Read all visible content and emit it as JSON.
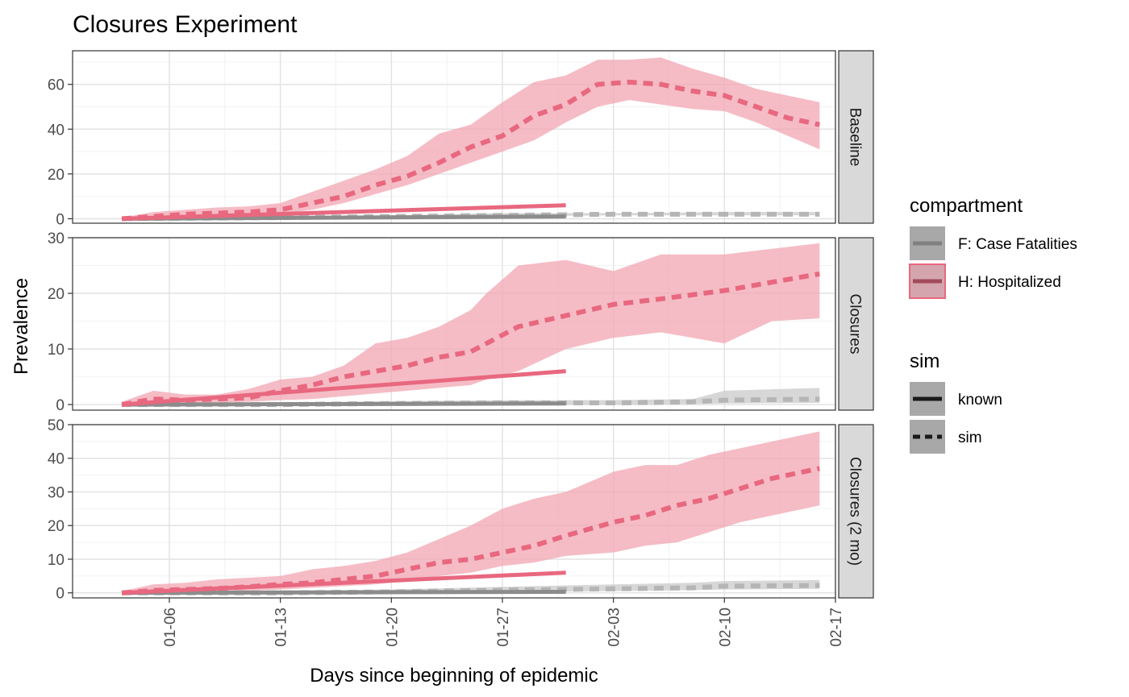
{
  "chart_data": {
    "type": "line",
    "title": "Closures Experiment",
    "xlabel": "Days since beginning of epidemic",
    "ylabel": "Prevalence",
    "x_ticks": [
      "01-06",
      "01-13",
      "01-20",
      "01-27",
      "02-03",
      "02-10",
      "02-17"
    ],
    "x_range": [
      "2020-01-01",
      "2020-02-17"
    ],
    "grid": true,
    "legend_position": "right",
    "legend": {
      "compartment_title": "compartment",
      "compartments": [
        {
          "label": "F: Case Fatalities",
          "color": "#8c8c8c",
          "band_color": "#c9c9c9"
        },
        {
          "label": "H: Hospitalized",
          "color": "#e8687f",
          "band_color": "#f2a6b3"
        }
      ],
      "sim_title": "sim",
      "sims": [
        {
          "label": "known",
          "style": "solid"
        },
        {
          "label": "sim",
          "style": "dashed"
        }
      ]
    },
    "panels": [
      {
        "strip": "Baseline",
        "ylim": [
          -2,
          75
        ],
        "y_ticks": [
          0,
          20,
          40,
          60
        ],
        "known_H": {
          "x": [
            "2020-01-03",
            "2020-01-31"
          ],
          "y": [
            0,
            6
          ]
        },
        "known_F": {
          "x": [
            "2020-01-03",
            "2020-01-31"
          ],
          "y": [
            0,
            1
          ]
        },
        "sim_H": {
          "x": [
            "2020-01-03",
            "2020-01-05",
            "2020-01-07",
            "2020-01-09",
            "2020-01-11",
            "2020-01-13",
            "2020-01-15",
            "2020-01-17",
            "2020-01-19",
            "2020-01-21",
            "2020-01-23",
            "2020-01-25",
            "2020-01-27",
            "2020-01-29",
            "2020-01-31",
            "2020-02-02",
            "2020-02-04",
            "2020-02-06",
            "2020-02-08",
            "2020-02-10",
            "2020-02-12",
            "2020-02-14",
            "2020-02-16"
          ],
          "y": [
            0,
            1,
            2,
            2.5,
            3,
            4,
            7,
            10,
            15,
            19,
            25,
            32,
            37,
            46,
            51,
            60,
            61,
            60,
            57,
            55,
            50,
            45,
            42
          ],
          "lo": [
            0,
            0,
            0.5,
            1,
            1,
            2,
            4,
            7,
            11,
            15,
            20,
            25,
            30,
            35,
            43,
            50,
            53,
            51,
            49,
            48,
            43,
            37,
            31
          ],
          "hi": [
            0.5,
            3,
            4,
            5,
            5.5,
            7,
            12,
            17,
            22,
            28,
            38,
            42,
            52,
            61,
            64,
            71,
            71,
            72,
            67,
            63,
            58,
            55,
            52
          ]
        },
        "sim_F": {
          "x": [
            "2020-01-03",
            "2020-01-13",
            "2020-01-20",
            "2020-01-27",
            "2020-02-03",
            "2020-02-10",
            "2020-02-16"
          ],
          "y": [
            0,
            0.5,
            1,
            1.5,
            2,
            2,
            2
          ],
          "lo": [
            0,
            0,
            0.5,
            1,
            1.5,
            1.5,
            1.5
          ],
          "hi": [
            0.5,
            1,
            1.5,
            2.5,
            2.5,
            3,
            3
          ]
        }
      },
      {
        "strip": "Closures",
        "ylim": [
          -1,
          30
        ],
        "y_ticks": [
          0,
          10,
          20,
          30
        ],
        "known_H": {
          "x": [
            "2020-01-03",
            "2020-01-31"
          ],
          "y": [
            0,
            6
          ]
        },
        "known_F": {
          "x": [
            "2020-01-03",
            "2020-01-31"
          ],
          "y": [
            0,
            0.2
          ]
        },
        "sim_H": {
          "x": [
            "2020-01-03",
            "2020-01-05",
            "2020-01-07",
            "2020-01-09",
            "2020-01-11",
            "2020-01-13",
            "2020-01-15",
            "2020-01-17",
            "2020-01-19",
            "2020-01-21",
            "2020-01-23",
            "2020-01-25",
            "2020-01-26",
            "2020-01-28",
            "2020-01-31",
            "2020-02-03",
            "2020-02-06",
            "2020-02-10",
            "2020-02-13",
            "2020-02-16"
          ],
          "y": [
            0,
            1,
            0.8,
            1,
            1.2,
            2.5,
            3.5,
            5,
            6,
            7,
            8.5,
            9.5,
            11,
            14,
            16,
            18,
            19,
            20.5,
            22,
            23.5
          ],
          "lo": [
            0,
            0,
            0.2,
            0.4,
            0.5,
            0.8,
            1,
            1.5,
            2,
            2.5,
            3,
            3.5,
            4.5,
            6,
            10,
            12,
            13,
            11,
            15,
            15.5
          ],
          "hi": [
            0.5,
            2.5,
            1.8,
            1.8,
            2.8,
            4.5,
            5,
            7,
            11,
            12,
            14,
            17,
            20,
            25,
            26,
            24,
            27,
            27,
            28,
            29
          ]
        },
        "sim_F": {
          "x": [
            "2020-01-03",
            "2020-01-13",
            "2020-01-20",
            "2020-01-27",
            "2020-02-03",
            "2020-02-08",
            "2020-02-10",
            "2020-02-16"
          ],
          "y": [
            0,
            0,
            0.2,
            0.3,
            0.3,
            0.5,
            0.8,
            1
          ],
          "lo": [
            0,
            0,
            0,
            0,
            0,
            0.1,
            0.2,
            0.3
          ],
          "hi": [
            0.2,
            0.3,
            0.6,
            0.8,
            0.8,
            1,
            2.5,
            3
          ]
        }
      },
      {
        "strip": "Closures (2 mo)",
        "ylim": [
          -1.5,
          50
        ],
        "y_ticks": [
          0,
          10,
          20,
          30,
          40,
          50
        ],
        "known_H": {
          "x": [
            "2020-01-03",
            "2020-01-31"
          ],
          "y": [
            0,
            6
          ]
        },
        "known_F": {
          "x": [
            "2020-01-03",
            "2020-01-31"
          ],
          "y": [
            0,
            0.3
          ]
        },
        "sim_H": {
          "x": [
            "2020-01-03",
            "2020-01-05",
            "2020-01-07",
            "2020-01-09",
            "2020-01-11",
            "2020-01-13",
            "2020-01-15",
            "2020-01-17",
            "2020-01-19",
            "2020-01-21",
            "2020-01-23",
            "2020-01-25",
            "2020-01-27",
            "2020-01-29",
            "2020-01-31",
            "2020-02-03",
            "2020-02-05",
            "2020-02-07",
            "2020-02-09",
            "2020-02-11",
            "2020-02-13",
            "2020-02-16"
          ],
          "y": [
            0,
            0.7,
            1,
            1.3,
            1.8,
            2.5,
            3,
            4,
            5,
            7,
            9,
            10,
            12,
            14,
            17,
            21,
            23,
            26,
            28,
            31,
            34,
            37
          ],
          "lo": [
            0,
            0,
            0.3,
            0.5,
            0.7,
            1,
            1.5,
            2,
            2.5,
            3.5,
            5,
            6,
            8,
            9,
            11,
            12,
            14,
            15,
            18,
            21,
            23,
            26
          ],
          "hi": [
            0.5,
            2.5,
            3,
            4,
            4.5,
            5,
            7,
            8,
            9.5,
            12,
            16,
            20,
            25,
            28,
            30,
            36,
            38,
            38,
            41,
            43,
            45,
            48
          ]
        },
        "sim_F": {
          "x": [
            "2020-01-03",
            "2020-01-13",
            "2020-01-20",
            "2020-01-27",
            "2020-02-03",
            "2020-02-08",
            "2020-02-10",
            "2020-02-16"
          ],
          "y": [
            0,
            0,
            0.3,
            0.8,
            1.2,
            1.5,
            2,
            2.2
          ],
          "lo": [
            0,
            0,
            0,
            0.2,
            0.5,
            0.8,
            1,
            1.2
          ],
          "hi": [
            0.2,
            0.5,
            1,
            1.8,
            2.5,
            3,
            3.5,
            3.8
          ]
        }
      }
    ]
  }
}
